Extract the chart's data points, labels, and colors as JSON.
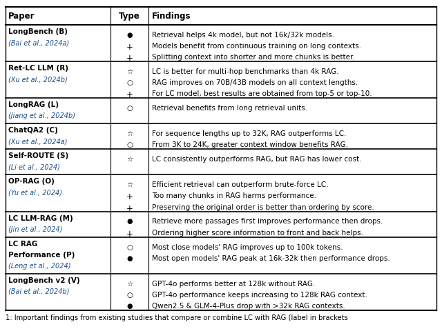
{
  "caption": "1: Important findings from existing studies that compare or combine LC with RAG (label in brackets",
  "headers": [
    "Paper",
    "Type",
    "Findings"
  ],
  "rows": [
    {
      "paper_bold": "LongBench (B)",
      "paper_cite": "(Bai et al., 2024a)",
      "types": [
        "●",
        "+",
        "+"
      ],
      "findings": [
        "Retrieval helps 4k model, but not 16k/32k models.",
        "Models benefit from continuous training on long contexts.",
        "Splitting context into shorter and more chunks is better."
      ]
    },
    {
      "paper_bold": "Ret-LC LLM (R)",
      "paper_cite": "(Xu et al., 2024b)",
      "types": [
        "★",
        "○",
        "+"
      ],
      "findings": [
        "LC is better for multi-hop benchmarks than 4k RAG.",
        "RAG improves on 70B/43B models on all context lengths.",
        "For LC model, best results are obtained from top-5 or top-10."
      ]
    },
    {
      "paper_bold": "LongRAG (L)",
      "paper_cite": "(Jiang et al., 2024b)",
      "types": [
        "○"
      ],
      "findings": [
        "Retrieval benefits from long retrieval units."
      ]
    },
    {
      "paper_bold": "ChatQA2 (C)",
      "paper_cite": "(Xu et al., 2024a)",
      "types": [
        "★",
        "○"
      ],
      "findings": [
        "For sequence lengths up to 32K, RAG outperforms LC.",
        "From 3K to 24K, greater context window benefits RAG."
      ]
    },
    {
      "paper_bold": "Self-ROUTE (S)",
      "paper_cite": "(Li et al., 2024)",
      "types": [
        "★"
      ],
      "findings": [
        "LC consistently outperforms RAG, but RAG has lower cost."
      ]
    },
    {
      "paper_bold": "OP-RAG (O)",
      "paper_cite": "(Yu et al., 2024)",
      "types": [
        "★",
        "+",
        "+"
      ],
      "findings": [
        "Efficient retrieval can outperform brute-force LC.",
        "Too many chunks in RAG harms performance.",
        "Preserving the original order is better than ordering by score."
      ]
    },
    {
      "paper_bold": "LC LLM-RAG (M)",
      "paper_cite": "(Jin et al., 2024)",
      "types": [
        "●",
        "+"
      ],
      "findings": [
        "Retrieve more passages first improves performance then drops.",
        "Ordering higher score information to front and back helps."
      ]
    },
    {
      "paper_bold": "LC RAG\nPerformance (P)",
      "paper_cite": "(Leng et al., 2024)",
      "types": [
        "○",
        "●"
      ],
      "findings": [
        "Most close models' RAG improves up to 100k tokens.",
        "Most open models' RAG peak at 16k-32k then performance drops."
      ]
    },
    {
      "paper_bold": "LongBench v2 (V)",
      "paper_cite": "(Bai et al., 2024b)",
      "types": [
        "★",
        "○",
        "●"
      ],
      "findings": [
        "GPT-4o performs better at 128k without RAG.",
        "GPT-4o performance keeps increasing to 128k RAG context.",
        "Qwen2.5 & GLM-4-Plus drop with >32k RAG contexts."
      ]
    }
  ],
  "bg_color": "#ffffff",
  "cite_color": "#1a4f8a",
  "text_color": "#000000",
  "bold_color": "#000000",
  "header_color": "#000000"
}
